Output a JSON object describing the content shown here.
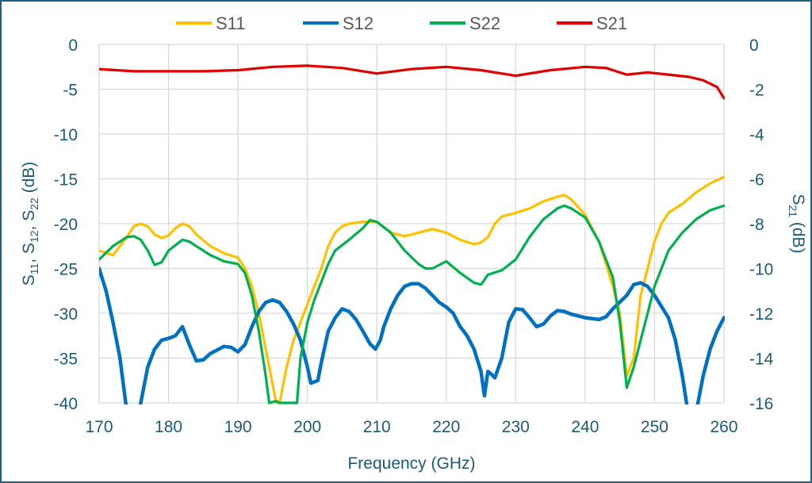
{
  "chart_data": {
    "type": "line",
    "xlabel": "Frequency (GHz)",
    "ylabel_left": {
      "parts": [
        "S",
        "11",
        ", S",
        "12",
        ", S",
        "22",
        " (dB)"
      ]
    },
    "ylabel_right": {
      "parts": [
        "S",
        "21",
        " (dB)"
      ]
    },
    "xlim": [
      170,
      260
    ],
    "ylim_left": [
      -40,
      0
    ],
    "ylim_right": [
      -16,
      0
    ],
    "xticks": [
      "170",
      "180",
      "190",
      "200",
      "210",
      "220",
      "230",
      "240",
      "250",
      "260"
    ],
    "yticks_left": [
      "0",
      "-5",
      "-10",
      "-15",
      "-20",
      "-25",
      "-30",
      "-35",
      "-40"
    ],
    "yticks_right": [
      "0",
      "-2",
      "-4",
      "-6",
      "-8",
      "-10",
      "-12",
      "-14",
      "-16"
    ],
    "grid": true,
    "legend_position": "top",
    "series": [
      {
        "name": "S11",
        "axis": "left",
        "color": "#ffc000",
        "x": [
          170,
          172,
          174,
          175,
          176,
          177,
          178,
          179,
          180,
          181,
          182,
          183,
          184,
          186,
          188,
          190,
          191,
          192,
          193,
          194,
          195,
          195.5,
          196,
          197,
          198,
          199,
          200,
          201,
          202,
          203,
          204,
          205,
          206,
          208,
          210,
          212,
          214,
          216,
          218,
          220,
          222,
          224,
          225,
          226,
          227,
          228,
          230,
          232,
          234,
          236,
          237,
          238,
          240,
          242,
          244,
          245,
          246,
          247,
          248,
          249,
          250,
          251,
          252,
          254,
          256,
          258,
          260
        ],
        "y": [
          -23,
          -23.5,
          -21.5,
          -20.3,
          -20,
          -20.3,
          -21.2,
          -21.6,
          -21.3,
          -20.5,
          -20,
          -20.3,
          -21.2,
          -22.5,
          -23.3,
          -23.8,
          -25,
          -27,
          -30,
          -34,
          -38,
          -40,
          -40,
          -36,
          -33,
          -31,
          -29,
          -27,
          -25,
          -22.5,
          -21,
          -20.3,
          -20,
          -19.8,
          -19.8,
          -21,
          -21.4,
          -21,
          -20.6,
          -21,
          -21.8,
          -22.3,
          -22.1,
          -21.5,
          -20,
          -19.2,
          -18.8,
          -18.3,
          -17.5,
          -17,
          -16.8,
          -17.3,
          -19,
          -22,
          -27,
          -30,
          -37,
          -35,
          -28,
          -25,
          -22,
          -20,
          -18.8,
          -17.8,
          -16.5,
          -15.5,
          -14.8
        ]
      },
      {
        "name": "S12",
        "axis": "left",
        "color": "#0070c0",
        "x": [
          170,
          171,
          172,
          173,
          174,
          175.5,
          176,
          177,
          178,
          179,
          180,
          181,
          182,
          183,
          184,
          185,
          186,
          188,
          189,
          190,
          191,
          192,
          193,
          194,
          195,
          196,
          197,
          198,
          199,
          200,
          200.5,
          201.5,
          202,
          203,
          204,
          205,
          206,
          207,
          208,
          209,
          209.8,
          210.5,
          211,
          212,
          213,
          214,
          215,
          216,
          217,
          218,
          219,
          220,
          221,
          222,
          223,
          224,
          225,
          225.5,
          226,
          226.5,
          227,
          228,
          229,
          230,
          231,
          232,
          233,
          234,
          235,
          236,
          237,
          238,
          240,
          242,
          243,
          244,
          246,
          247,
          248,
          249,
          250,
          252,
          253,
          254,
          254.8,
          256,
          257,
          258,
          259,
          260
        ],
        "y": [
          -25,
          -27.5,
          -31,
          -35,
          -41,
          -42,
          -40,
          -36,
          -34,
          -33,
          -32.8,
          -32.5,
          -31.5,
          -33.5,
          -35.3,
          -35.2,
          -34.5,
          -33.7,
          -33.8,
          -34.3,
          -33.5,
          -31.5,
          -29.8,
          -28.8,
          -28.5,
          -28.8,
          -29.8,
          -31.2,
          -33,
          -36,
          -37.8,
          -37.5,
          -35.5,
          -32,
          -30.5,
          -29.5,
          -29.8,
          -30.7,
          -32,
          -33.4,
          -34,
          -33,
          -31.5,
          -29.5,
          -28,
          -27,
          -26.7,
          -26.7,
          -27.2,
          -28,
          -28.8,
          -29.3,
          -30,
          -31.5,
          -32.5,
          -34,
          -36.5,
          -39.2,
          -36.5,
          -36.8,
          -37.2,
          -35,
          -31,
          -29.5,
          -29.6,
          -30.5,
          -31.5,
          -31.2,
          -30.3,
          -29.7,
          -29.8,
          -30.1,
          -30.5,
          -30.7,
          -30.4,
          -29.5,
          -28,
          -26.8,
          -26.6,
          -27,
          -28,
          -30.5,
          -33,
          -37,
          -41,
          -41,
          -37,
          -34,
          -32,
          -30.5
        ]
      },
      {
        "name": "S22",
        "axis": "left",
        "color": "#00b050",
        "x": [
          170,
          172,
          174,
          175,
          176,
          177,
          178,
          179,
          180,
          182,
          183,
          184,
          186,
          188,
          190,
          191,
          192,
          193,
          194,
          194.5,
          195.5,
          196,
          198.5,
          199,
          200,
          201,
          202,
          203,
          204,
          206,
          208,
          209,
          210,
          212,
          214,
          216,
          217,
          218,
          220,
          222,
          224,
          225,
          226,
          228,
          230,
          232,
          234,
          236,
          237,
          238,
          240,
          242,
          244,
          245,
          246,
          247,
          248,
          249,
          250,
          251,
          252,
          254,
          256,
          258,
          260
        ],
        "y": [
          -24,
          -22.5,
          -21.5,
          -21.4,
          -21.8,
          -23,
          -24.6,
          -24.3,
          -23,
          -21.8,
          -22,
          -22.5,
          -23.5,
          -24.2,
          -24.5,
          -25.5,
          -28,
          -32,
          -37,
          -40,
          -39.8,
          -40,
          -40,
          -35,
          -31,
          -28.5,
          -26.5,
          -24.5,
          -23,
          -21.8,
          -20.5,
          -19.6,
          -19.8,
          -21,
          -23,
          -24.5,
          -25,
          -25,
          -24.2,
          -25.5,
          -26.6,
          -26.8,
          -25.7,
          -25.2,
          -24,
          -21.5,
          -19.5,
          -18.3,
          -18,
          -18.3,
          -19.3,
          -22,
          -26,
          -31,
          -38.3,
          -36,
          -33,
          -30,
          -27,
          -25,
          -23,
          -21,
          -19.5,
          -18.5,
          -18
        ]
      },
      {
        "name": "S21",
        "axis": "right",
        "color": "#e00000",
        "x": [
          170,
          175,
          180,
          185,
          190,
          195,
          200,
          205,
          210,
          215,
          220,
          225,
          230,
          235,
          240,
          243,
          246,
          249,
          252,
          255,
          257,
          259,
          260
        ],
        "y": [
          -1.1,
          -1.2,
          -1.2,
          -1.2,
          -1.15,
          -1.0,
          -0.95,
          -1.05,
          -1.3,
          -1.1,
          -1.0,
          -1.15,
          -1.4,
          -1.15,
          -1.0,
          -1.05,
          -1.35,
          -1.25,
          -1.35,
          -1.45,
          -1.6,
          -1.9,
          -2.4
        ]
      }
    ]
  }
}
